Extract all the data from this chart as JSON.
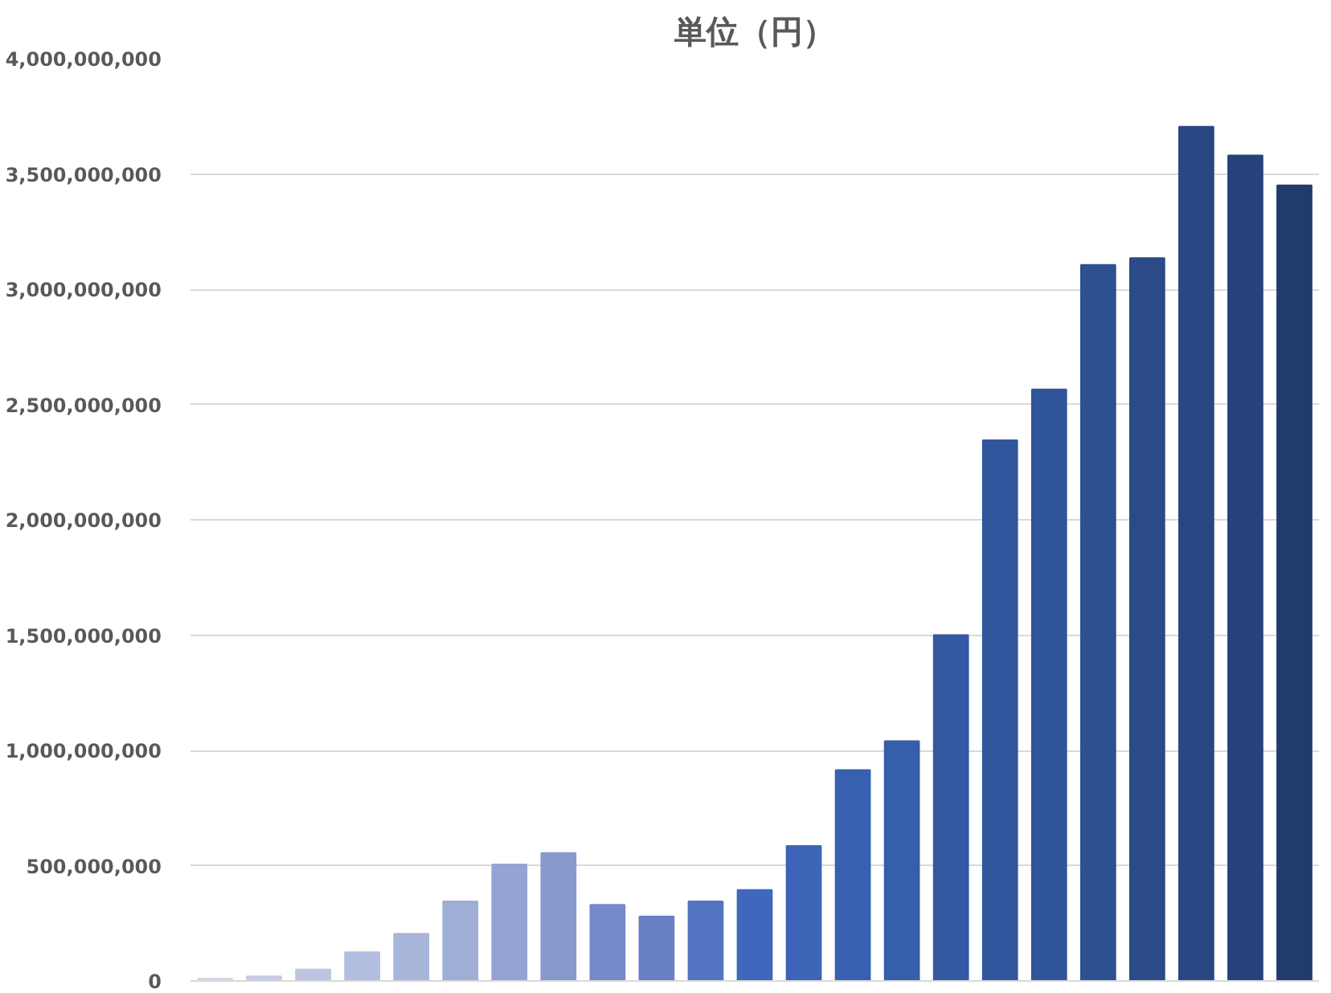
{
  "chart_data": {
    "type": "bar",
    "title": "単位（円）",
    "categories": [
      null,
      null,
      null,
      null,
      null,
      null,
      null,
      null,
      null,
      null,
      null,
      null,
      null,
      null,
      null,
      null,
      null,
      null,
      null,
      null,
      null,
      null,
      null
    ],
    "values": [
      10000000,
      20000000,
      50000000,
      125000000,
      205000000,
      345000000,
      505000000,
      555000000,
      330000000,
      280000000,
      345000000,
      395000000,
      585000000,
      915000000,
      1040000000,
      1500000000,
      2345000000,
      2565000000,
      3105000000,
      3135000000,
      3705000000,
      3580000000,
      3450000000
    ],
    "colors": [
      "#d0d4e6",
      "#c5cbe4",
      "#bcc4e2",
      "#b3bde0",
      "#a8b5db",
      "#9faed7",
      "#93a3d3",
      "#8798cd",
      "#7589c8",
      "#687fc5",
      "#5474c2",
      "#3e67bd",
      "#3c65b8",
      "#3860b0",
      "#365eab",
      "#3359a3",
      "#31569d",
      "#2f5499",
      "#2d5090",
      "#2b4b88",
      "#284782",
      "#25427b",
      "#223b6e"
    ],
    "ylim": [
      0,
      4000000000
    ],
    "yticks": [
      {
        "value": 0,
        "label": "0"
      },
      {
        "value": 500000000,
        "label": "500,000,000"
      },
      {
        "value": 1000000000,
        "label": "1,000,000,000"
      },
      {
        "value": 1500000000,
        "label": "1,500,000,000"
      },
      {
        "value": 2000000000,
        "label": "2,000,000,000"
      },
      {
        "value": 2500000000,
        "label": "2,500,000,000"
      },
      {
        "value": 3000000000,
        "label": "3,000,000,000"
      },
      {
        "value": 3500000000,
        "label": "3,500,000,000"
      },
      {
        "value": 4000000000,
        "label": "4,000,000,000"
      }
    ],
    "grid": "y"
  }
}
